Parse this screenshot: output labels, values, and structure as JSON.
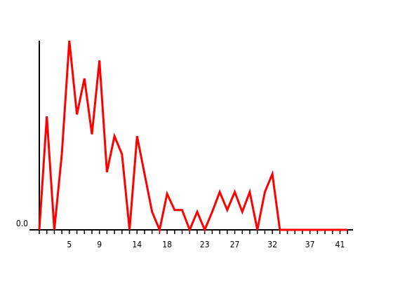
{
  "chart_data": {
    "type": "line",
    "title": "",
    "xlabel": "",
    "ylabel": "",
    "xlim": [
      0.5,
      42.5
    ],
    "ylim": [
      0,
      10.5
    ],
    "x_tick_values": [
      1,
      2,
      3,
      4,
      5,
      6,
      7,
      8,
      9,
      10,
      11,
      12,
      13,
      14,
      15,
      16,
      17,
      18,
      19,
      20,
      21,
      22,
      23,
      24,
      25,
      26,
      27,
      28,
      29,
      30,
      31,
      32,
      33,
      34,
      35,
      36,
      37,
      38,
      39,
      40,
      41,
      42
    ],
    "x_tick_labels": [
      {
        "x": 5,
        "label": "5"
      },
      {
        "x": 9,
        "label": "9"
      },
      {
        "x": 14,
        "label": "14"
      },
      {
        "x": 18,
        "label": "18"
      },
      {
        "x": 23,
        "label": "23"
      },
      {
        "x": 27,
        "label": "27"
      },
      {
        "x": 32,
        "label": "32"
      },
      {
        "x": 37,
        "label": "37"
      },
      {
        "x": 41,
        "label": "41"
      }
    ],
    "y_tick_labels": [
      {
        "y": 0,
        "label": "0.0"
      }
    ],
    "grid": false,
    "legend": "none",
    "series": [
      {
        "color": "#ff0000",
        "x": [
          1,
          2,
          3,
          4,
          5,
          6,
          7,
          8,
          9,
          10,
          11,
          12,
          13,
          14,
          15,
          16,
          17,
          18,
          19,
          20,
          21,
          22,
          23,
          24,
          25,
          26,
          27,
          28,
          29,
          30,
          31,
          32,
          33,
          34,
          35,
          36,
          37,
          38,
          39,
          40,
          41,
          42
        ],
        "values": [
          0,
          6.3,
          0,
          4.2,
          10.5,
          6.4,
          8.4,
          5.3,
          9.4,
          3.2,
          5.2,
          4.2,
          0,
          5.2,
          3.1,
          1.0,
          0,
          2.0,
          1.1,
          1.1,
          0,
          1.0,
          0,
          1.0,
          2.1,
          1.1,
          2.1,
          1.0,
          2.1,
          0,
          2.1,
          3.1,
          0,
          0,
          0,
          0,
          0,
          0,
          0,
          0,
          0,
          0
        ]
      }
    ]
  }
}
